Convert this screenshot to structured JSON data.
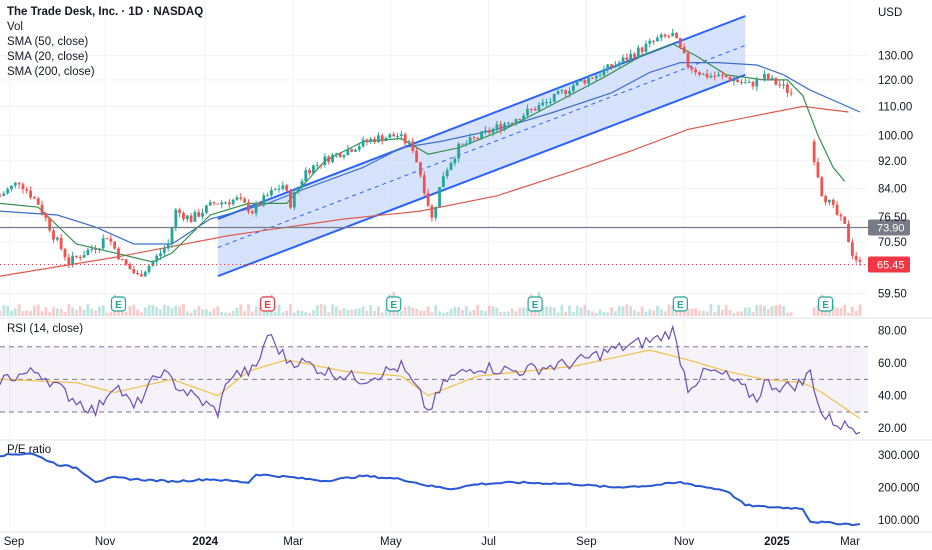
{
  "header": {
    "title": "The Trade Desk, Inc. · 1D · NASDAQ",
    "vol_label": "Vol",
    "indicators": [
      "SMA (50, close)",
      "SMA (20, close)",
      "SMA (200, close)"
    ],
    "currency": "USD"
  },
  "colors": {
    "up": "#26a69a",
    "down": "#ef5350",
    "channel": "#2962ff",
    "channel_fill": "#c9d8fb",
    "sma50": "#3d6fc7",
    "sma20": "#35904c",
    "sma200": "#e05a4e",
    "rsi": "#6a4fb3",
    "rsi_ma": "#f0c24a",
    "pe": "#2757d6",
    "current_tag": "#f23645",
    "level_tag": "#787b86"
  },
  "chart_data": [
    {
      "type": "candlestick",
      "title": "The Trade Desk, Inc. · 1D · NASDAQ",
      "currency": "USD",
      "x_ticks": [
        "Sep",
        "Nov",
        "2024",
        "Mar",
        "May",
        "Jul",
        "Sep",
        "Nov",
        "2025",
        "Mar"
      ],
      "y_ticks": [
        59.5,
        70.5,
        76.5,
        84.0,
        92.0,
        100.0,
        110.0,
        120.0,
        130.0
      ],
      "y_scale": "log",
      "ylim": [
        56,
        148
      ],
      "close_path": [
        [
          0,
          82
        ],
        [
          5,
          86
        ],
        [
          10,
          80
        ],
        [
          14,
          72
        ],
        [
          18,
          66
        ],
        [
          22,
          68
        ],
        [
          26,
          70
        ],
        [
          28,
          72
        ],
        [
          32,
          66
        ],
        [
          36,
          63
        ],
        [
          40,
          66
        ],
        [
          44,
          70
        ],
        [
          46,
          78
        ],
        [
          50,
          76
        ],
        [
          56,
          80
        ],
        [
          62,
          81
        ],
        [
          66,
          78
        ],
        [
          70,
          82
        ],
        [
          74,
          85
        ],
        [
          76,
          80
        ],
        [
          80,
          89
        ],
        [
          86,
          93
        ],
        [
          92,
          96
        ],
        [
          98,
          99
        ],
        [
          104,
          100
        ],
        [
          108,
          96
        ],
        [
          110,
          88
        ],
        [
          113,
          76
        ],
        [
          116,
          88
        ],
        [
          120,
          96
        ],
        [
          126,
          100
        ],
        [
          132,
          104
        ],
        [
          138,
          108
        ],
        [
          144,
          112
        ],
        [
          150,
          118
        ],
        [
          156,
          122
        ],
        [
          162,
          127
        ],
        [
          168,
          133
        ],
        [
          172,
          137
        ],
        [
          176,
          139
        ],
        [
          180,
          126
        ],
        [
          184,
          122
        ],
        [
          190,
          121
        ],
        [
          196,
          118
        ],
        [
          200,
          121
        ],
        [
          204,
          118
        ],
        [
          206,
          116
        ],
        [
          208,
          114
        ],
        [
          210,
          109
        ],
        [
          212,
          98
        ],
        [
          215,
          83
        ],
        [
          217,
          80
        ],
        [
          219,
          77
        ],
        [
          221,
          74
        ],
        [
          223,
          68
        ],
        [
          225,
          65.45
        ]
      ],
      "sma50": [
        [
          0,
          78
        ],
        [
          15,
          77
        ],
        [
          25,
          74
        ],
        [
          35,
          70
        ],
        [
          45,
          70
        ],
        [
          55,
          76
        ],
        [
          70,
          80
        ],
        [
          80,
          84
        ],
        [
          95,
          90
        ],
        [
          105,
          96
        ],
        [
          115,
          98
        ],
        [
          130,
          102
        ],
        [
          145,
          108
        ],
        [
          160,
          115
        ],
        [
          170,
          123
        ],
        [
          178,
          127
        ],
        [
          188,
          127
        ],
        [
          198,
          126
        ],
        [
          205,
          122
        ],
        [
          212,
          116
        ],
        [
          225,
          108
        ]
      ],
      "sma20": [
        [
          0,
          80
        ],
        [
          10,
          79
        ],
        [
          20,
          70
        ],
        [
          30,
          68
        ],
        [
          40,
          66
        ],
        [
          45,
          68
        ],
        [
          55,
          77
        ],
        [
          65,
          80
        ],
        [
          75,
          80
        ],
        [
          85,
          92
        ],
        [
          95,
          98
        ],
        [
          105,
          99
        ],
        [
          112,
          94
        ],
        [
          120,
          96
        ],
        [
          132,
          102
        ],
        [
          145,
          111
        ],
        [
          158,
          121
        ],
        [
          168,
          130
        ],
        [
          176,
          135
        ],
        [
          182,
          130
        ],
        [
          190,
          122
        ],
        [
          200,
          120
        ],
        [
          206,
          120
        ],
        [
          210,
          114
        ],
        [
          214,
          100
        ],
        [
          218,
          90
        ],
        [
          221,
          86
        ]
      ],
      "sma200": [
        [
          0,
          63
        ],
        [
          30,
          67
        ],
        [
          60,
          72
        ],
        [
          90,
          76
        ],
        [
          110,
          78
        ],
        [
          130,
          82
        ],
        [
          150,
          89
        ],
        [
          165,
          95
        ],
        [
          180,
          102
        ],
        [
          195,
          106
        ],
        [
          210,
          110
        ],
        [
          222,
          108
        ]
      ],
      "channel_upper": [
        [
          57,
          76
        ],
        [
          195,
          148
        ]
      ],
      "channel_lower": [
        [
          57,
          63
        ],
        [
          195,
          122
        ]
      ],
      "horizontal_level": 73.9,
      "current_price": 65.45,
      "price_tags": [
        "73.90",
        "65.45"
      ],
      "earnings_markers": [
        "E",
        "E",
        "E",
        "E",
        "E",
        "E"
      ],
      "earnings_index": [
        31,
        70,
        103,
        140,
        178,
        216
      ]
    },
    {
      "type": "line",
      "title": "RSI (14, close)",
      "y_ticks": [
        20.0,
        40.0,
        60.0,
        80.0
      ],
      "ylim": [
        14,
        84
      ],
      "bands": [
        30,
        50,
        70
      ],
      "series": [
        {
          "name": "RSI",
          "values": [
            [
              0,
              50
            ],
            [
              10,
              55
            ],
            [
              18,
              40
            ],
            [
              25,
              30
            ],
            [
              30,
              48
            ],
            [
              35,
              32
            ],
            [
              42,
              55
            ],
            [
              47,
              45
            ],
            [
              57,
              30
            ],
            [
              60,
              52
            ],
            [
              67,
              56
            ],
            [
              70,
              78
            ],
            [
              75,
              62
            ],
            [
              80,
              60
            ],
            [
              85,
              55
            ],
            [
              95,
              50
            ],
            [
              105,
              58
            ],
            [
              110,
              40
            ],
            [
              112,
              30
            ],
            [
              117,
              50
            ],
            [
              125,
              58
            ],
            [
              135,
              55
            ],
            [
              150,
              60
            ],
            [
              160,
              68
            ],
            [
              172,
              75
            ],
            [
              176,
              80
            ],
            [
              180,
              45
            ],
            [
              185,
              55
            ],
            [
              190,
              52
            ],
            [
              198,
              38
            ],
            [
              200,
              48
            ],
            [
              205,
              45
            ],
            [
              210,
              48
            ],
            [
              212,
              55
            ],
            [
              215,
              28
            ],
            [
              220,
              22
            ],
            [
              225,
              20
            ]
          ]
        },
        {
          "name": "RSI-based MA",
          "values": [
            [
              0,
              50
            ],
            [
              20,
              48
            ],
            [
              30,
              42
            ],
            [
              45,
              50
            ],
            [
              57,
              40
            ],
            [
              65,
              55
            ],
            [
              75,
              62
            ],
            [
              90,
              55
            ],
            [
              105,
              52
            ],
            [
              112,
              40
            ],
            [
              125,
              52
            ],
            [
              150,
              58
            ],
            [
              170,
              68
            ],
            [
              180,
              62
            ],
            [
              190,
              55
            ],
            [
              200,
              50
            ],
            [
              210,
              48
            ],
            [
              215,
              42
            ],
            [
              225,
              26
            ]
          ]
        }
      ]
    },
    {
      "type": "line",
      "title": "P/E ratio",
      "y_ticks": [
        "100.000",
        "200.000",
        "300.000"
      ],
      "ylim": [
        75,
        330
      ],
      "series": [
        {
          "name": "P/E ratio",
          "values": [
            [
              0,
              298
            ],
            [
              8,
              305
            ],
            [
              15,
              270
            ],
            [
              20,
              260
            ],
            [
              25,
              218
            ],
            [
              30,
              230
            ],
            [
              35,
              225
            ],
            [
              45,
              218
            ],
            [
              55,
              225
            ],
            [
              65,
              215
            ],
            [
              67,
              240
            ],
            [
              75,
              232
            ],
            [
              85,
              220
            ],
            [
              95,
              235
            ],
            [
              105,
              225
            ],
            [
              112,
              205
            ],
            [
              118,
              195
            ],
            [
              125,
              210
            ],
            [
              135,
              215
            ],
            [
              150,
              210
            ],
            [
              160,
              200
            ],
            [
              170,
              205
            ],
            [
              178,
              215
            ],
            [
              185,
              200
            ],
            [
              190,
              190
            ],
            [
              195,
              145
            ],
            [
              200,
              140
            ],
            [
              210,
              135
            ],
            [
              212,
              95
            ],
            [
              218,
              90
            ],
            [
              225,
              85
            ]
          ]
        }
      ]
    }
  ]
}
